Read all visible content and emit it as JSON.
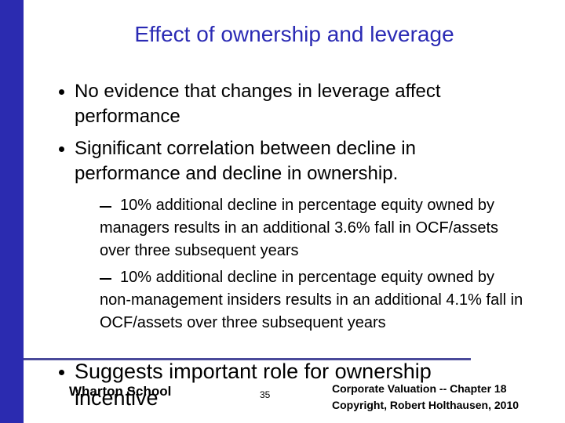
{
  "title": "Effect of ownership and leverage",
  "bullets": [
    {
      "text": "No evidence that changes in leverage affect performance"
    },
    {
      "text": "Significant correlation between decline in performance and decline in ownership.",
      "sub_bullets": [
        "10% additional decline in percentage equity owned by managers results in an additional 3.6% fall in OCF/assets over three subsequent years",
        "10% additional decline in percentage equity owned by non-management insiders results in an additional 4.1% fall in OCF/assets over three subsequent years"
      ]
    },
    {
      "text": "Suggests important role for ownership incentive"
    }
  ],
  "footer": {
    "left": "Wharton School",
    "page": "35",
    "right_line1": "Corporate Valuation -- Chapter 18",
    "right_line2": "Copyright, Robert Holthausen, 2010"
  }
}
